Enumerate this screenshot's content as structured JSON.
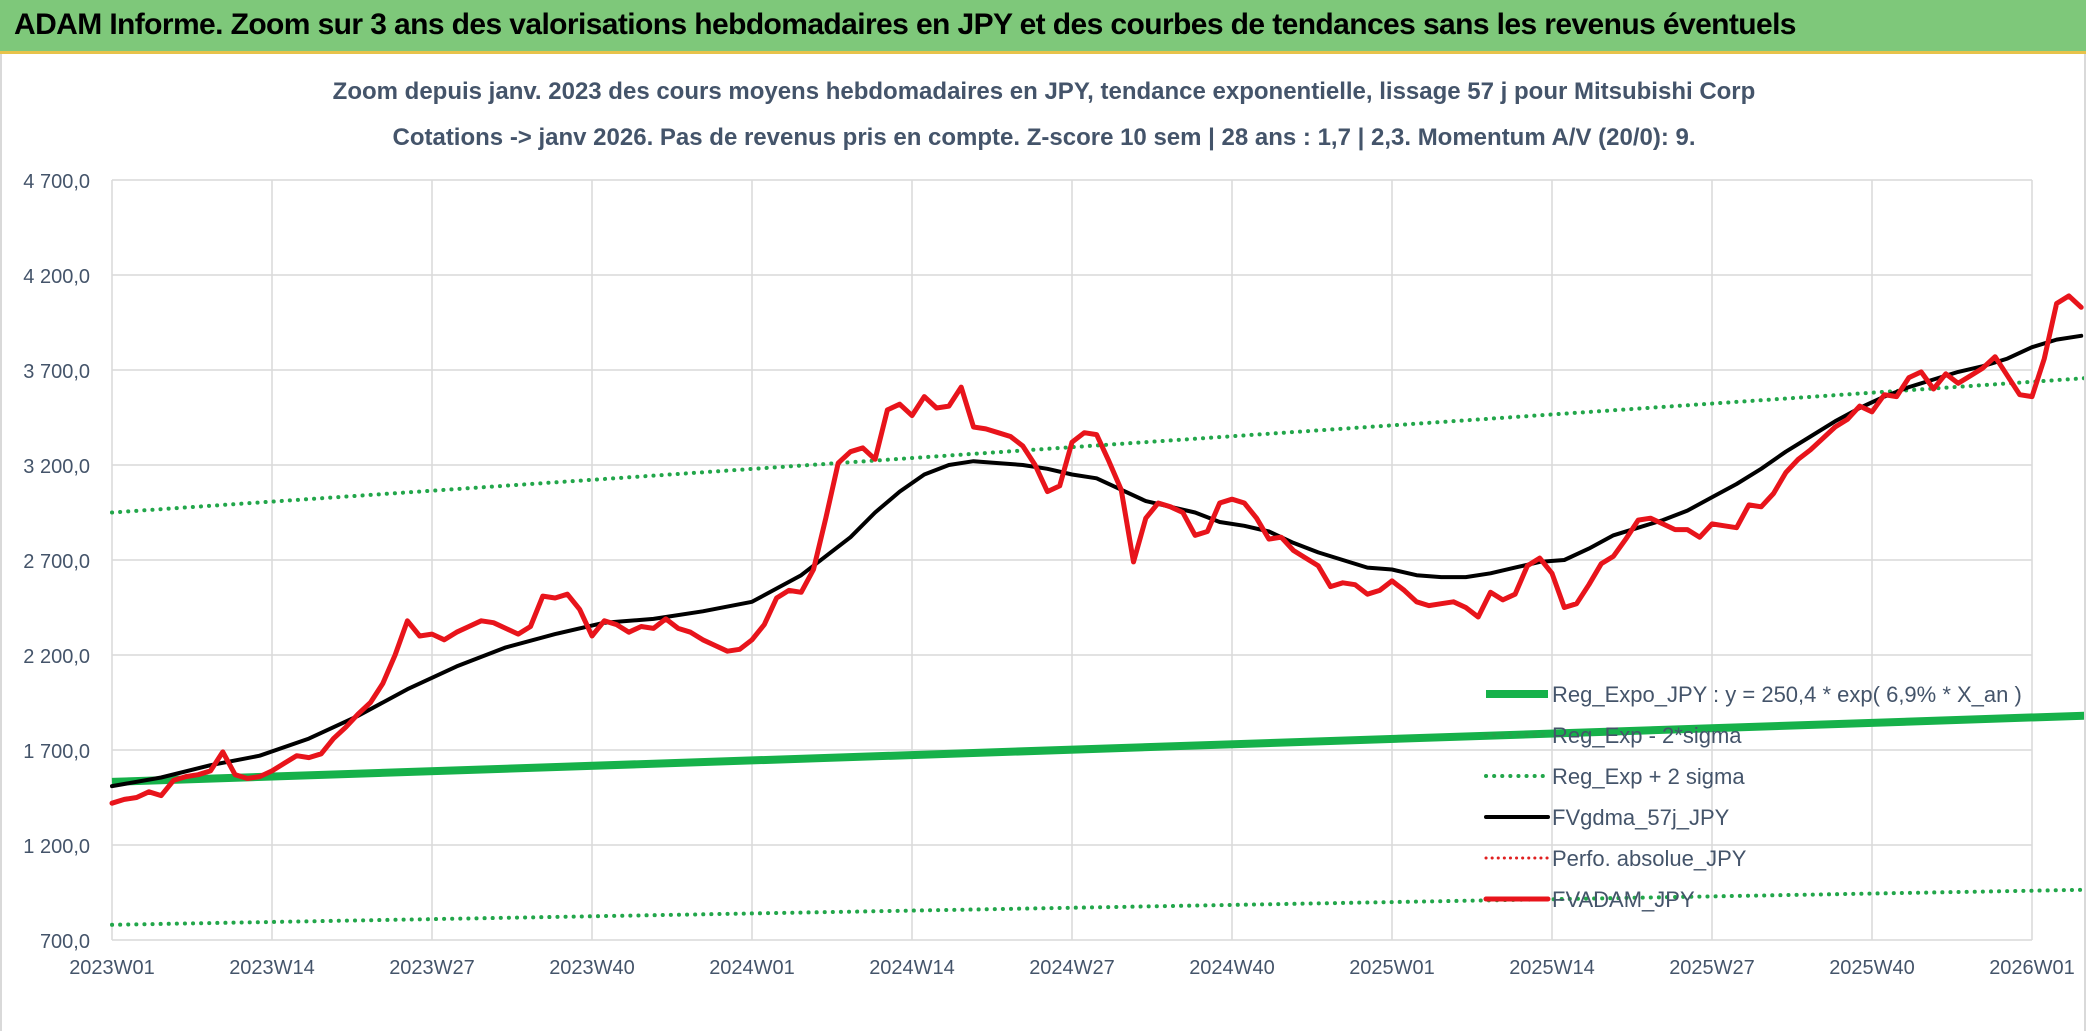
{
  "header": {
    "title": "ADAM Informe. Zoom sur 3 ans des valorisations hebdomadaires en JPY et des courbes de tendances sans les revenus éventuels"
  },
  "colors": {
    "header_bg": "#7ec87a",
    "reg_expo": "#16b14a",
    "reg_sigma": "#22a64a",
    "gdma": "#000000",
    "perfo": "#e02020",
    "adam": "#e8141b",
    "grid": "#d9d9d9",
    "text": "#44546a"
  },
  "chart_data": {
    "type": "line",
    "title": "Zoom depuis janv. 2023 des cours moyens hebdomadaires en JPY, tendance exponentielle, lissage 57 j pour Mitsubishi Corp",
    "subtitle": "Cotations -> janv 2026. Pas de revenus pris en compte. Z-score 10 sem | 28 ans : 1,7 | 2,3. Momentum A/V (20/0): 9.",
    "xlabel": "",
    "ylabel": "",
    "ylim": [
      700,
      4700
    ],
    "xlim": [
      0,
      156
    ],
    "grid": true,
    "legend_position": "bottom-right",
    "y_ticks": [
      {
        "value": 700,
        "label": "700,0"
      },
      {
        "value": 1200,
        "label": "1 200,0"
      },
      {
        "value": 1700,
        "label": "1 700,0"
      },
      {
        "value": 2200,
        "label": "2 200,0"
      },
      {
        "value": 2700,
        "label": "2 700,0"
      },
      {
        "value": 3200,
        "label": "3 200,0"
      },
      {
        "value": 3700,
        "label": "3 700,0"
      },
      {
        "value": 4200,
        "label": "4 200,0"
      },
      {
        "value": 4700,
        "label": "4 700,0"
      }
    ],
    "x_ticks": [
      {
        "value": 0,
        "label": "2023W01"
      },
      {
        "value": 13,
        "label": "2023W14"
      },
      {
        "value": 26,
        "label": "2023W27"
      },
      {
        "value": 39,
        "label": "2023W40"
      },
      {
        "value": 52,
        "label": "2024W01"
      },
      {
        "value": 65,
        "label": "2024W14"
      },
      {
        "value": 78,
        "label": "2024W27"
      },
      {
        "value": 91,
        "label": "2024W40"
      },
      {
        "value": 104,
        "label": "2025W01"
      },
      {
        "value": 117,
        "label": "2025W14"
      },
      {
        "value": 130,
        "label": "2025W27"
      },
      {
        "value": 143,
        "label": "2025W40"
      },
      {
        "value": 156,
        "label": "2026W01"
      }
    ],
    "series": [
      {
        "name": "Reg_Expo_JPY : y = 250,4 * exp( 6,9% *  X_an )",
        "style": "solid-thick",
        "x": [
          0,
          161
        ],
        "y": [
          1532,
          1882
        ]
      },
      {
        "name": "Reg_Exp - 2*sigma",
        "style": "dotted",
        "x": [
          0,
          161
        ],
        "y": [
          780,
          965
        ]
      },
      {
        "name": "Reg_Exp + 2 sigma",
        "style": "dotted",
        "x": [
          0,
          161
        ],
        "y": [
          2950,
          3660
        ]
      },
      {
        "name": "FVgdma_57j_JPY",
        "style": "solid",
        "x": [
          0,
          4,
          8,
          12,
          16,
          20,
          24,
          28,
          32,
          36,
          40,
          44,
          48,
          52,
          56,
          60,
          62,
          64,
          66,
          68,
          70,
          72,
          74,
          76,
          78,
          80,
          82,
          84,
          86,
          88,
          90,
          92,
          94,
          96,
          98,
          100,
          102,
          104,
          106,
          108,
          110,
          112,
          114,
          116,
          118,
          120,
          122,
          124,
          126,
          128,
          130,
          132,
          134,
          136,
          138,
          140,
          142,
          144,
          146,
          148,
          150,
          152,
          154,
          156,
          158,
          160
        ],
        "y": [
          1510,
          1555,
          1620,
          1670,
          1760,
          1880,
          2020,
          2140,
          2240,
          2310,
          2370,
          2390,
          2430,
          2480,
          2620,
          2820,
          2950,
          3060,
          3150,
          3200,
          3220,
          3210,
          3200,
          3180,
          3150,
          3130,
          3070,
          3010,
          2980,
          2950,
          2900,
          2880,
          2850,
          2790,
          2740,
          2700,
          2660,
          2650,
          2620,
          2610,
          2610,
          2630,
          2660,
          2690,
          2700,
          2760,
          2830,
          2870,
          2910,
          2960,
          3030,
          3100,
          3180,
          3270,
          3350,
          3430,
          3500,
          3560,
          3610,
          3650,
          3690,
          3720,
          3760,
          3820,
          3860,
          3880
        ]
      },
      {
        "name": "Perfo. absolue_JPY",
        "style": "dotted",
        "x": [],
        "y": []
      },
      {
        "name": "FVADAM_JPY",
        "style": "solid-thick",
        "x": [
          0,
          1,
          2,
          3,
          4,
          5,
          6,
          7,
          8,
          9,
          10,
          11,
          12,
          13,
          14,
          15,
          16,
          17,
          18,
          19,
          20,
          21,
          22,
          23,
          24,
          25,
          26,
          27,
          28,
          29,
          30,
          31,
          32,
          33,
          34,
          35,
          36,
          37,
          38,
          39,
          40,
          41,
          42,
          43,
          44,
          45,
          46,
          47,
          48,
          49,
          50,
          51,
          52,
          53,
          54,
          55,
          56,
          57,
          58,
          59,
          60,
          61,
          62,
          63,
          64,
          65,
          66,
          67,
          68,
          69,
          70,
          71,
          72,
          73,
          74,
          75,
          76,
          77,
          78,
          79,
          80,
          81,
          82,
          83,
          84,
          85,
          86,
          87,
          88,
          89,
          90,
          91,
          92,
          93,
          94,
          95,
          96,
          97,
          98,
          99,
          100,
          101,
          102,
          103,
          104,
          105,
          106,
          107,
          108,
          109,
          110,
          111,
          112,
          113,
          114,
          115,
          116,
          117,
          118,
          119,
          120,
          121,
          122,
          123,
          124,
          125,
          126,
          127,
          128,
          129,
          130,
          131,
          132,
          133,
          134,
          135,
          136,
          137,
          138,
          139,
          140,
          141,
          142,
          143,
          144,
          145,
          146,
          147,
          148,
          149,
          150,
          151,
          152,
          153,
          154,
          155,
          156,
          157,
          158,
          159,
          160
        ],
        "y": [
          1420,
          1440,
          1450,
          1480,
          1460,
          1540,
          1560,
          1570,
          1590,
          1690,
          1570,
          1550,
          1560,
          1590,
          1630,
          1670,
          1660,
          1680,
          1760,
          1820,
          1890,
          1950,
          2050,
          2200,
          2380,
          2300,
          2310,
          2280,
          2320,
          2350,
          2380,
          2370,
          2340,
          2310,
          2350,
          2510,
          2500,
          2520,
          2440,
          2300,
          2380,
          2360,
          2320,
          2350,
          2340,
          2390,
          2340,
          2320,
          2280,
          2250,
          2220,
          2230,
          2280,
          2360,
          2500,
          2540,
          2530,
          2650,
          2920,
          3210,
          3270,
          3290,
          3230,
          3490,
          3520,
          3460,
          3560,
          3500,
          3510,
          3610,
          3400,
          3390,
          3370,
          3350,
          3300,
          3200,
          3060,
          3090,
          3320,
          3370,
          3360,
          3220,
          3070,
          2690,
          2920,
          3000,
          2980,
          2950,
          2830,
          2850,
          3000,
          3020,
          3000,
          2920,
          2810,
          2820,
          2750,
          2710,
          2670,
          2560,
          2580,
          2570,
          2520,
          2540,
          2590,
          2540,
          2480,
          2460,
          2470,
          2480,
          2450,
          2400,
          2530,
          2490,
          2520,
          2670,
          2710,
          2630,
          2450,
          2470,
          2570,
          2680,
          2720,
          2810,
          2910,
          2920,
          2890,
          2860,
          2860,
          2820,
          2890,
          2880,
          2870,
          2990,
          2980,
          3050,
          3160,
          3230,
          3280,
          3340,
          3400,
          3440,
          3510,
          3480,
          3570,
          3560,
          3660,
          3690,
          3600,
          3680,
          3630,
          3670,
          3710,
          3770,
          3670,
          3570,
          3560,
          3760,
          4050,
          4090,
          4030
        ]
      }
    ]
  }
}
